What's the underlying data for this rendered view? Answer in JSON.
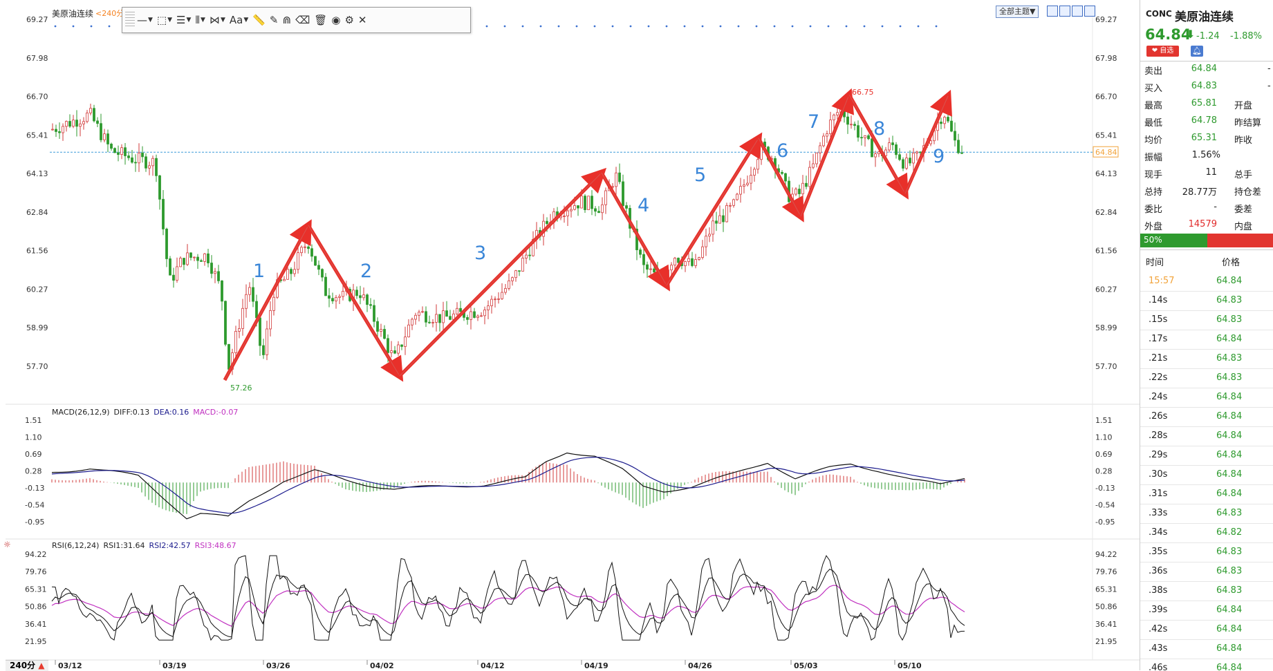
{
  "chart_header": {
    "instrument": "美原油连续",
    "period": "<240分"
  },
  "toolbar": {
    "items": [
      {
        "name": "line-tool-icon",
        "glyph": "—",
        "arrow": "▼"
      },
      {
        "name": "rect-tool-icon",
        "glyph": "⬚",
        "arrow": "▼"
      },
      {
        "name": "fib-tool-icon",
        "glyph": "☰",
        "arrow": "▼"
      },
      {
        "name": "channel-tool-icon",
        "glyph": "⦀",
        "arrow": "▼"
      },
      {
        "name": "pattern-tool-icon",
        "glyph": "⋈",
        "arrow": "▼"
      },
      {
        "name": "text-tool-icon",
        "glyph": "Aa",
        "arrow": "▼"
      },
      {
        "name": "ruler-icon",
        "glyph": "📏",
        "arrow": ""
      },
      {
        "name": "pencil-icon",
        "glyph": "✎",
        "arrow": ""
      },
      {
        "name": "magnet-icon",
        "glyph": "⋒",
        "arrow": ""
      },
      {
        "name": "eraser-icon",
        "glyph": "⌫",
        "arrow": ""
      },
      {
        "name": "trash-icon",
        "glyph": "🗑",
        "arrow": ""
      },
      {
        "name": "eye-icon",
        "glyph": "◉",
        "arrow": ""
      },
      {
        "name": "gear-icon",
        "glyph": "⚙",
        "arrow": ""
      },
      {
        "name": "close-icon",
        "glyph": "✕",
        "arrow": ""
      }
    ]
  },
  "theme_button": "全部主题▼",
  "price_axis": [
    "69.27",
    "67.98",
    "66.70",
    "65.41",
    "64.13",
    "62.84",
    "61.56",
    "60.27",
    "58.99",
    "57.70"
  ],
  "current_price_tag": "64.84",
  "high_label": "66.75",
  "low_label": "57.26",
  "wave_labels": [
    "1",
    "2",
    "3",
    "4",
    "5",
    "6",
    "7",
    "8",
    "9"
  ],
  "macd": {
    "title": "MACD(26,12,9)",
    "diff": "DIFF:0.13",
    "dea": "DEA:0.16",
    "macd": "MACD:-0.07",
    "axis": [
      "1.51",
      "1.10",
      "0.69",
      "0.28",
      "-0.13",
      "-0.54",
      "-0.95"
    ]
  },
  "rsi": {
    "title": "RSI(6,12,24)",
    "rsi1": "RSI1:31.64",
    "rsi2": "RSI2:42.57",
    "rsi3": "RSI3:48.67",
    "axis": [
      "94.22",
      "79.76",
      "65.31",
      "50.86",
      "36.41",
      "21.95"
    ]
  },
  "date_axis": [
    "03/12",
    "03/19",
    "03/26",
    "04/02",
    "04/12",
    "04/19",
    "04/26",
    "05/03",
    "05/10"
  ],
  "period_button": {
    "label": "240分",
    "arrow": "▲"
  },
  "panel": {
    "code": "CONC",
    "name": "美原油连续",
    "price": "64.84",
    "arrow": "⬇",
    "change": "-1.24",
    "pct": "-1.88%",
    "fav_label": "❤ 自选",
    "rows": [
      {
        "l": "卖出",
        "v": "64.84",
        "c": "green",
        "l2": "",
        "v2": "-"
      },
      {
        "l": "买入",
        "v": "64.83",
        "c": "green",
        "l2": "",
        "v2": "-"
      },
      {
        "l": "最高",
        "v": "65.81",
        "c": "green",
        "l2": "开盘",
        "v2": ""
      },
      {
        "l": "最低",
        "v": "64.78",
        "c": "green",
        "l2": "昨结算",
        "v2": ""
      },
      {
        "l": "均价",
        "v": "65.31",
        "c": "green",
        "l2": "昨收",
        "v2": ""
      },
      {
        "l": "振幅",
        "v": "1.56%",
        "c": "",
        "l2": "",
        "v2": ""
      },
      {
        "l": "现手",
        "v": "11",
        "c": "",
        "l2": "总手",
        "v2": ""
      },
      {
        "l": "总持",
        "v": "28.77万",
        "c": "",
        "l2": "持仓差",
        "v2": ""
      },
      {
        "l": "委比",
        "v": "-",
        "c": "",
        "l2": "委差",
        "v2": ""
      },
      {
        "l": "外盘",
        "v": "14579",
        "c": "red",
        "l2": "内盘",
        "v2": ""
      }
    ],
    "ratio": "50%",
    "ratio_value": 0.5,
    "ticks_header": {
      "time": "时间",
      "price": "价格"
    },
    "ticks": [
      {
        "t": "15:57",
        "p": "64.84"
      },
      {
        "t": ".14s",
        "p": "64.83"
      },
      {
        "t": ".15s",
        "p": "64.83"
      },
      {
        "t": ".17s",
        "p": "64.84"
      },
      {
        "t": ".21s",
        "p": "64.83"
      },
      {
        "t": ".22s",
        "p": "64.83"
      },
      {
        "t": ".24s",
        "p": "64.84"
      },
      {
        "t": ".26s",
        "p": "64.84"
      },
      {
        "t": ".28s",
        "p": "64.84"
      },
      {
        "t": ".29s",
        "p": "64.84"
      },
      {
        "t": ".30s",
        "p": "64.84"
      },
      {
        "t": ".31s",
        "p": "64.84"
      },
      {
        "t": ".33s",
        "p": "64.83"
      },
      {
        "t": ".34s",
        "p": "64.82"
      },
      {
        "t": ".35s",
        "p": "64.83"
      },
      {
        "t": ".36s",
        "p": "64.83"
      },
      {
        "t": ".38s",
        "p": "64.83"
      },
      {
        "t": ".39s",
        "p": "64.84"
      },
      {
        "t": ".42s",
        "p": "64.84"
      },
      {
        "t": ".43s",
        "p": "64.84"
      },
      {
        "t": ".46s",
        "p": "64.84"
      }
    ]
  },
  "colors": {
    "up": "#d23a3a",
    "down": "#2e9a2e",
    "arrow": "#e8302a",
    "wave": "#3a86d8",
    "dea": "#1a1a8c",
    "macd_label": "#c030c0"
  }
}
